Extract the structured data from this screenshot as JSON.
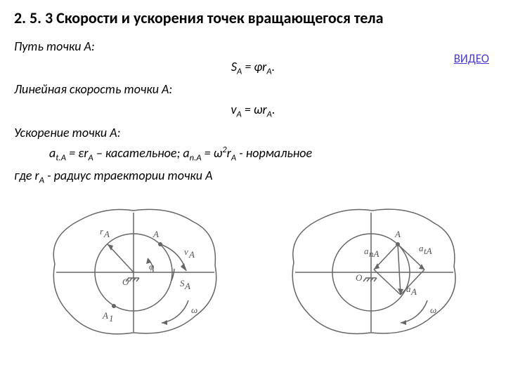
{
  "heading": "2. 5. 3  Скорости и ускорения точек вращающегося тела",
  "link_text": "ВИДЕО",
  "path_label": "Путь точки А:",
  "path_formula_html": "S<sub>A</sub> = φr<sub>A</sub>.",
  "velocity_label": "Линейная скорость точки А:",
  "velocity_formula_html": "v<sub>A</sub> = ωr<sub>A</sub>.",
  "accel_label": "Ускорение точки А:",
  "accel_formula_html": "a<sub>t.A</sub> = εr<sub>A</sub> – касательное; a<sub>n.A</sub> = ω<sup>2</sup>r<sub>A</sub> - нормальное",
  "where_html": "где r<sub>A</sub> - радиус траектории точки А",
  "diagram1": {
    "labels": {
      "rA": "r_A",
      "A": "A",
      "vA": "v_A",
      "O": "O",
      "phi": "φ",
      "SA": "S_A",
      "A1": "A_1",
      "omega": "ω"
    }
  },
  "diagram2": {
    "labels": {
      "A": "A",
      "anA": "a_nA",
      "atA": "a_tA",
      "aA": "a_A",
      "O": "O",
      "omega": "ω"
    }
  }
}
